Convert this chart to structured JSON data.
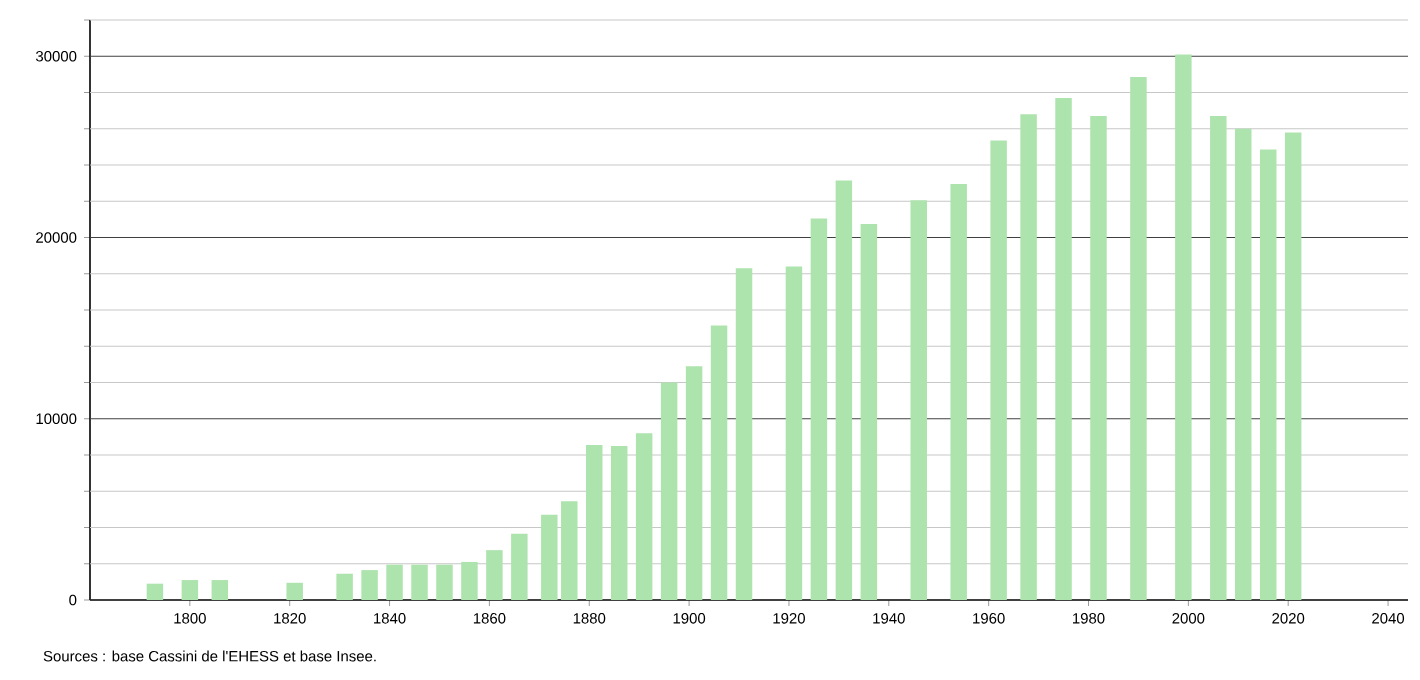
{
  "chart_data": {
    "type": "bar",
    "x": [
      1793,
      1800,
      1806,
      1821,
      1831,
      1836,
      1841,
      1846,
      1851,
      1856,
      1861,
      1866,
      1872,
      1876,
      1881,
      1886,
      1891,
      1896,
      1901,
      1906,
      1911,
      1921,
      1926,
      1931,
      1936,
      1946,
      1954,
      1962,
      1968,
      1975,
      1982,
      1990,
      1999,
      2006,
      2011,
      2016,
      2021
    ],
    "values": [
      900,
      1100,
      1100,
      950,
      1450,
      1650,
      1950,
      1950,
      1950,
      2100,
      2750,
      3650,
      4700,
      5450,
      8550,
      8500,
      9200,
      12000,
      12900,
      15150,
      18300,
      18400,
      21050,
      23150,
      20750,
      22050,
      22950,
      25350,
      26800,
      27700,
      26700,
      28850,
      30100,
      26700,
      26000,
      24850,
      25800
    ],
    "color": "#ade3ad",
    "xlim": [
      1780,
      2044
    ],
    "xticks": [
      1800,
      1820,
      1840,
      1860,
      1880,
      1900,
      1920,
      1940,
      1960,
      1980,
      2000,
      2020,
      2040
    ],
    "ylim": [
      0,
      32000
    ],
    "yticks": [
      0,
      {
        "value": 2000,
        "label": null
      },
      {
        "value": 4000,
        "label": null
      },
      {
        "value": 6000,
        "label": null
      },
      {
        "value": 8000,
        "label": null
      },
      10000,
      {
        "value": 12000,
        "label": null
      },
      {
        "value": 14000,
        "label": null
      },
      {
        "value": 16000,
        "label": null
      },
      {
        "value": 18000,
        "label": null
      },
      20000,
      {
        "value": 22000,
        "label": null
      },
      {
        "value": 24000,
        "label": null
      },
      {
        "value": 26000,
        "label": null
      },
      {
        "value": 28000,
        "label": null
      },
      30000,
      {
        "value": 32000,
        "label": null
      }
    ],
    "grid": "y",
    "annotations": [
      "Sources : base Cassini de l'EHESS et base Insee."
    ]
  }
}
